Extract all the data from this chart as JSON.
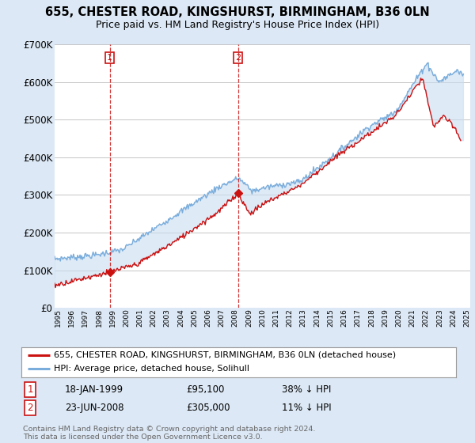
{
  "title": "655, CHESTER ROAD, KINGSHURST, BIRMINGHAM, B36 0LN",
  "subtitle": "Price paid vs. HM Land Registry's House Price Index (HPI)",
  "ylim": [
    0,
    700000
  ],
  "yticks": [
    0,
    100000,
    200000,
    300000,
    400000,
    500000,
    600000,
    700000
  ],
  "ytick_labels": [
    "£0",
    "£100K",
    "£200K",
    "£300K",
    "£400K",
    "£500K",
    "£600K",
    "£700K"
  ],
  "background_color": "#dce8f5",
  "plot_background": "#ffffff",
  "grid_color": "#bbbbbb",
  "hpi_color": "#7aaddc",
  "price_color": "#cc1111",
  "fill_color": "#c8ddf0",
  "vline_color": "#cc1111",
  "purchase1_x": 1999.04,
  "purchase1_y": 95100,
  "purchase2_x": 2008.47,
  "purchase2_y": 305000,
  "legend_items": [
    {
      "label": "655, CHESTER ROAD, KINGSHURST, BIRMINGHAM, B36 0LN (detached house)",
      "color": "#cc1111"
    },
    {
      "label": "HPI: Average price, detached house, Solihull",
      "color": "#7aaddc"
    }
  ],
  "table_rows": [
    {
      "num": "1",
      "date": "18-JAN-1999",
      "price": "£95,100",
      "hpi": "38% ↓ HPI"
    },
    {
      "num": "2",
      "date": "23-JUN-2008",
      "price": "£305,000",
      "hpi": "11% ↓ HPI"
    }
  ],
  "footnote": "Contains HM Land Registry data © Crown copyright and database right 2024.\nThis data is licensed under the Open Government Licence v3.0.",
  "title_fontsize": 10.5,
  "subtitle_fontsize": 9,
  "tick_fontsize": 8.5,
  "legend_fontsize": 8,
  "table_fontsize": 8.5,
  "xmin": 1995.0,
  "xmax": 2025.5
}
